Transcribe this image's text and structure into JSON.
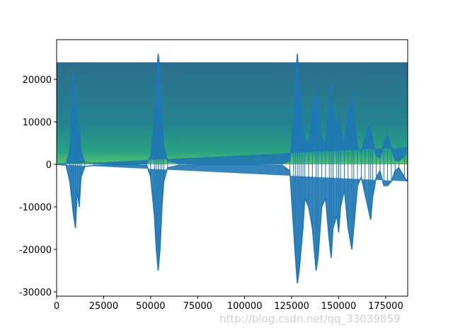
{
  "chart_data": {
    "type": "line",
    "x": [
      0,
      5000,
      7000,
      8000,
      9000,
      10000,
      11000,
      12000,
      13000,
      15000,
      20000,
      30000,
      40000,
      48000,
      50000,
      52000,
      53000,
      54000,
      55000,
      56000,
      57000,
      59000,
      65000,
      80000,
      100000,
      120000,
      124000,
      126000,
      127000,
      128000,
      129000,
      130000,
      131000,
      132000,
      134000,
      136000,
      138000,
      139000,
      141000,
      143000,
      145000,
      146000,
      147000,
      149000,
      150000,
      151000,
      153000,
      155000,
      157000,
      158000,
      160000,
      162000,
      164000,
      166000,
      167000,
      168000,
      170000,
      172000,
      174000,
      176000,
      178000,
      180000,
      182000,
      185000,
      186500
    ],
    "series": [
      {
        "color": "#1f77b4",
        "values": [
          0,
          200,
          3000,
          12000,
          22000,
          18000,
          8000,
          9000,
          3000,
          500,
          200,
          100,
          100,
          200,
          2000,
          10000,
          20000,
          26000,
          22000,
          12000,
          4000,
          800,
          200,
          100,
          100,
          200,
          800,
          10000,
          20000,
          26000,
          20000,
          15000,
          10000,
          6000,
          5000,
          12000,
          18000,
          15000,
          6000,
          5000,
          15000,
          19000,
          12000,
          8000,
          12000,
          8000,
          5000,
          12000,
          17000,
          12000,
          4000,
          3000,
          6000,
          9000,
          8000,
          6000,
          2000,
          1500,
          5000,
          7000,
          4000,
          1000,
          800,
          2000,
          4000
        ]
      },
      {
        "color": "#1f77b4",
        "values": [
          0,
          -200,
          -4000,
          -8000,
          -12000,
          -15000,
          -6000,
          -10000,
          -3000,
          -500,
          -200,
          -100,
          -100,
          -200,
          -3000,
          -12000,
          -20000,
          -25000,
          -20000,
          -10000,
          -4000,
          -800,
          -200,
          -100,
          -100,
          -200,
          -1500,
          -15000,
          -22000,
          -28000,
          -25000,
          -20000,
          -15000,
          -8000,
          -10000,
          -15000,
          -25000,
          -22000,
          -10000,
          -8000,
          -18000,
          -22000,
          -15000,
          -12000,
          -16000,
          -10000,
          -6000,
          -15000,
          -20000,
          -15000,
          -5000,
          -3000,
          -7000,
          -11000,
          -13000,
          -8000,
          -3000,
          -1500,
          -5000,
          -5000,
          -4000,
          -1500,
          -800,
          -3000,
          -4000
        ]
      }
    ],
    "spectrogram": {
      "xlim": [
        0,
        186700
      ],
      "ylim": [
        0,
        24000
      ]
    },
    "xlim": [
      0,
      186700
    ],
    "ylim": [
      -31000,
      29333
    ],
    "xticks": [
      0,
      25000,
      50000,
      75000,
      100000,
      125000,
      150000,
      175000
    ],
    "yticks": [
      -30000,
      -20000,
      -10000,
      0,
      10000,
      20000
    ]
  },
  "watermark": "http://blog.csdn.net/qq_33039859"
}
